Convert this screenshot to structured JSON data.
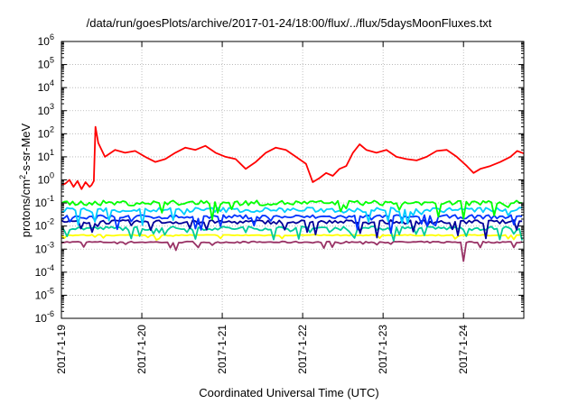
{
  "chart_data": {
    "type": "line",
    "title": "/data/run/goesPlots/archive/2017-01-24/18:00/flux/../flux/5daysMoonFluxes.txt",
    "xlabel": "Coordinated Universal Time (UTC)",
    "ylabel_parts": [
      "protons/cm",
      "2",
      "-s-sr-MeV"
    ],
    "x_tick_labels": [
      "2017-1-19",
      "2017-1-20",
      "2017-1-21",
      "2017-1-22",
      "2017-1-23",
      "2017-1-24"
    ],
    "xlim": [
      "2017-01-19T00:00",
      "2017-01-24T18:00"
    ],
    "y_scale": "log",
    "ylim": [
      1e-06,
      1000000.0
    ],
    "y_tick_labels": [
      {
        "base": "10",
        "exp": "-6"
      },
      {
        "base": "10",
        "exp": "-5"
      },
      {
        "base": "10",
        "exp": "-4"
      },
      {
        "base": "10",
        "exp": "-3"
      },
      {
        "base": "10",
        "exp": "-2"
      },
      {
        "base": "10",
        "exp": "-1"
      },
      {
        "base": "10",
        "exp": "0"
      },
      {
        "base": "10",
        "exp": "1"
      },
      {
        "base": "10",
        "exp": "2"
      },
      {
        "base": "10",
        "exp": "3"
      },
      {
        "base": "10",
        "exp": "4"
      },
      {
        "base": "10",
        "exp": "5"
      },
      {
        "base": "10",
        "exp": "6"
      }
    ],
    "grid": true,
    "series": [
      {
        "color": "#ff0000",
        "points": [
          [
            "2017-01-19T00:00",
            0.6
          ],
          [
            "2017-01-19T01:12",
            0.7
          ],
          [
            "2017-01-19T02:24",
            1.0
          ],
          [
            "2017-01-19T03:36",
            0.5
          ],
          [
            "2017-01-19T04:48",
            0.9
          ],
          [
            "2017-01-19T06:00",
            0.4
          ],
          [
            "2017-01-19T07:12",
            0.8
          ],
          [
            "2017-01-19T08:24",
            0.5
          ],
          [
            "2017-01-19T09:00",
            0.6
          ],
          [
            "2017-01-19T09:40",
            0.9
          ],
          [
            "2017-01-19T10:10",
            200
          ],
          [
            "2017-01-19T11:00",
            40
          ],
          [
            "2017-01-19T13:00",
            10
          ],
          [
            "2017-01-19T16:00",
            20
          ],
          [
            "2017-01-19T19:00",
            15
          ],
          [
            "2017-01-19T22:00",
            18
          ],
          [
            "2017-01-20T01:00",
            10
          ],
          [
            "2017-01-20T04:00",
            6
          ],
          [
            "2017-01-20T07:00",
            8
          ],
          [
            "2017-01-20T10:00",
            15
          ],
          [
            "2017-01-20T13:00",
            25
          ],
          [
            "2017-01-20T16:00",
            20
          ],
          [
            "2017-01-20T19:00",
            30
          ],
          [
            "2017-01-20T22:00",
            15
          ],
          [
            "2017-01-21T01:00",
            10
          ],
          [
            "2017-01-21T04:00",
            8
          ],
          [
            "2017-01-21T07:00",
            3
          ],
          [
            "2017-01-21T10:00",
            6
          ],
          [
            "2017-01-21T13:00",
            15
          ],
          [
            "2017-01-21T16:00",
            25
          ],
          [
            "2017-01-21T19:00",
            20
          ],
          [
            "2017-01-21T22:00",
            10
          ],
          [
            "2017-01-22T01:00",
            5
          ],
          [
            "2017-01-22T03:00",
            0.8
          ],
          [
            "2017-01-22T05:00",
            1.2
          ],
          [
            "2017-01-22T07:00",
            2
          ],
          [
            "2017-01-22T09:00",
            1.5
          ],
          [
            "2017-01-22T11:00",
            3
          ],
          [
            "2017-01-22T13:00",
            4
          ],
          [
            "2017-01-22T15:00",
            15
          ],
          [
            "2017-01-22T17:00",
            35
          ],
          [
            "2017-01-22T19:00",
            20
          ],
          [
            "2017-01-22T22:00",
            15
          ],
          [
            "2017-01-23T01:00",
            20
          ],
          [
            "2017-01-23T04:00",
            10
          ],
          [
            "2017-01-23T07:00",
            8
          ],
          [
            "2017-01-23T10:00",
            7
          ],
          [
            "2017-01-23T13:00",
            10
          ],
          [
            "2017-01-23T16:00",
            18
          ],
          [
            "2017-01-23T19:00",
            20
          ],
          [
            "2017-01-23T22:00",
            10
          ],
          [
            "2017-01-24T01:00",
            4
          ],
          [
            "2017-01-24T03:00",
            2
          ],
          [
            "2017-01-24T05:00",
            3
          ],
          [
            "2017-01-24T08:00",
            4
          ],
          [
            "2017-01-24T11:00",
            6
          ],
          [
            "2017-01-24T14:00",
            10
          ],
          [
            "2017-01-24T16:00",
            18
          ],
          [
            "2017-01-24T18:00",
            14
          ]
        ]
      },
      {
        "color": "#00ff00",
        "base": 0.1,
        "amp": 0.7,
        "noise": 0.25
      },
      {
        "color": "#00ccff",
        "base": 0.05,
        "amp": 0.7,
        "noise": 0.25
      },
      {
        "color": "#0033ff",
        "base": 0.025,
        "amp": 0.6,
        "noise": 0.2
      },
      {
        "color": "#000099",
        "base": 0.015,
        "amp": 0.6,
        "noise": 0.2
      },
      {
        "color": "#00cc99",
        "base": 0.008,
        "amp": 0.5,
        "noise": 0.2
      },
      {
        "color": "#ffff00",
        "base": 0.004,
        "amp": 0.2,
        "noise": 0.05
      },
      {
        "color": "#993366",
        "base": 0.002,
        "amp": 0.3,
        "noise": 0.08,
        "dip": [
          "2017-01-24T00:00",
          0.0003
        ]
      }
    ]
  }
}
